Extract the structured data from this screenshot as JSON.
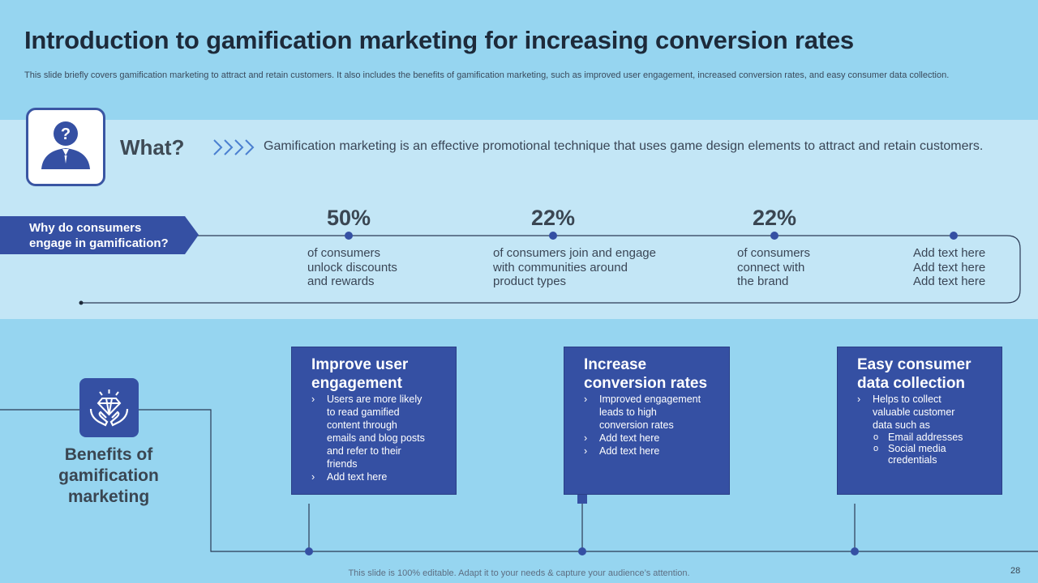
{
  "header": {
    "title": "Introduction to gamification marketing for increasing conversion rates",
    "subtitle": "This slide briefly covers gamification marketing to attract and retain customers. It also includes the benefits of gamification marketing, such as improved user engagement, increased conversion rates, and easy consumer data collection."
  },
  "what": {
    "label": "What?",
    "text": "Gamification marketing is an effective promotional technique that uses game design elements to attract and retain customers.",
    "icon": "person-question-icon"
  },
  "why": {
    "label_line1": "Why do consumers",
    "label_line2": "engage in gamification?",
    "stats": [
      {
        "value": "50%",
        "lines": [
          "of consumers",
          "unlock discounts",
          "and rewards"
        ]
      },
      {
        "value": "22%",
        "lines": [
          "of consumers join and engage",
          "with communities around",
          "product  types"
        ]
      },
      {
        "value": "22%",
        "lines": [
          "of consumers",
          "connect with",
          "the brand"
        ]
      },
      {
        "value": "",
        "lines": [
          "Add text here",
          "Add text here",
          "Add text here"
        ]
      }
    ]
  },
  "benefits": {
    "title_lines": [
      "Benefits of",
      "gamification",
      "marketing"
    ],
    "icon": "hands-diamond-icon",
    "cards": [
      {
        "title_lines": [
          "Improve user",
          "engagement"
        ],
        "bullets": [
          {
            "lines": [
              "Users are more likely",
              "to read gamified",
              "content through",
              "emails and blog posts",
              "and refer to their",
              "friends"
            ]
          },
          {
            "lines": [
              "Add text here"
            ]
          }
        ]
      },
      {
        "title_lines": [
          "Increase",
          "conversion rates"
        ],
        "bullets": [
          {
            "lines": [
              "Improved  engagement",
              "leads to high",
              "conversion  rates"
            ]
          },
          {
            "lines": [
              "Add text here"
            ]
          },
          {
            "lines": [
              "Add text here"
            ]
          }
        ]
      },
      {
        "title_lines": [
          "Easy consumer",
          "data collection"
        ],
        "bullets": [
          {
            "lines": [
              "Helps to collect",
              "valuable  customer",
              "data such as"
            ]
          }
        ],
        "sub_bullets": [
          {
            "lines": [
              "Email addresses"
            ]
          },
          {
            "lines": [
              "Social media",
              "credentials"
            ]
          }
        ]
      }
    ]
  },
  "footer": {
    "note": "This slide is 100% editable. Adapt it to your needs & capture your audience’s attention.",
    "page_number": "28"
  },
  "colors": {
    "background": "#96d5f0",
    "band": "#c3e6f6",
    "accent": "#3550a3",
    "text_dark": "#1d2a3a"
  }
}
